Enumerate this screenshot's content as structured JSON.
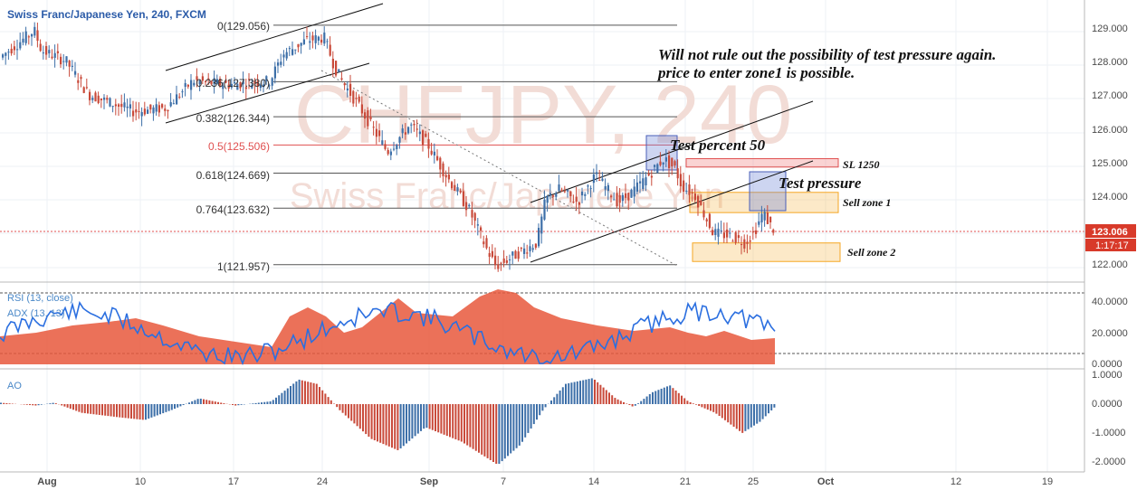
{
  "header": {
    "symbol_title": "Swiss Franc/Japanese Yen, 240, FXCM"
  },
  "watermark": {
    "line1": "CHFJPY, 240",
    "line2": "Swiss Franc/Japanese Yen"
  },
  "annotations": {
    "note_line1": "Will not rule out the possibility of test pressure again.",
    "note_line2": "price to enter zone1 is possible.",
    "test_percent": "Test percent 50",
    "test_pressure": "Test pressure",
    "sl": "SL 1250",
    "sell_zone1": "Sell zone 1",
    "sell_zone2": "Sell zone 2"
  },
  "price_scale": {
    "ticks": [
      "129.000",
      "128.000",
      "127.000",
      "126.000",
      "125.000",
      "124.000",
      "122.000"
    ],
    "last_price": "123.006",
    "countdown": "1:17:17"
  },
  "rsi_panel": {
    "label_rsi": "RSI (13, close)",
    "label_adx": "ADX (13, 13)",
    "ticks": [
      "40.0000",
      "20.0000",
      "0.0000"
    ]
  },
  "ao_panel": {
    "label": "AO",
    "ticks": [
      "1.0000",
      "0.0000",
      "-1.0000",
      "-2.0000"
    ]
  },
  "time_axis": {
    "labels": [
      "Aug",
      "10",
      "17",
      "24",
      "Sep",
      "7",
      "14",
      "21",
      "25",
      "Oct",
      "12",
      "19"
    ]
  },
  "colors": {
    "up": "#3d6fa8",
    "down": "#c94a3a",
    "rsi": "#2b6fe0",
    "adx_fill": "#e8583c",
    "fib_red": "#e05050",
    "zone": "#f5a623",
    "sl": "#f08080",
    "test_box": "#6f88d8"
  },
  "chart_data": {
    "type": "candlestick",
    "title": "Swiss Franc/Japanese Yen, 240, FXCM",
    "ylim": [
      121.5,
      129.6
    ],
    "last": 123.006,
    "fibonacci": [
      {
        "level": "0",
        "price": 129.056
      },
      {
        "level": "0.236",
        "price": 127.38
      },
      {
        "level": "0.382",
        "price": 126.344
      },
      {
        "level": "0.5",
        "price": 125.506
      },
      {
        "level": "0.618",
        "price": 124.669
      },
      {
        "level": "0.764",
        "price": 123.632
      },
      {
        "level": "1",
        "price": 121.957
      }
    ],
    "zones": [
      {
        "name": "SL 1250",
        "top": 125.1,
        "bottom": 124.85
      },
      {
        "name": "Sell zone 1",
        "top": 124.1,
        "bottom": 123.5
      },
      {
        "name": "Sell zone 2",
        "top": 122.6,
        "bottom": 122.05
      }
    ],
    "series": [
      {
        "name": "RSI (13, close)"
      },
      {
        "name": "ADX (13, 13)"
      },
      {
        "name": "AO"
      }
    ]
  }
}
